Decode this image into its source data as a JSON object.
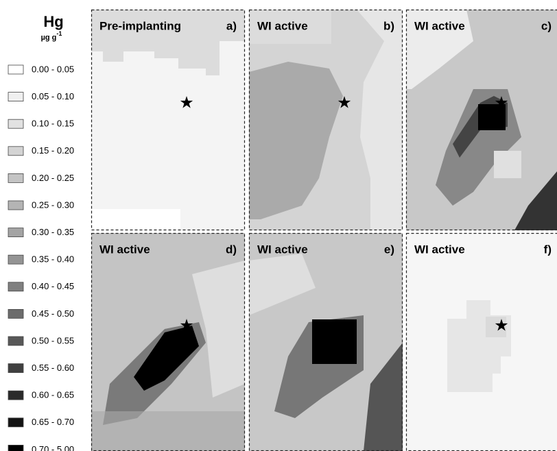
{
  "legend": {
    "title": "Hg",
    "unit": "µg g",
    "unit_exponent": "-1",
    "items": [
      {
        "label": "0.00 - 0.05",
        "color": "#ffffff"
      },
      {
        "label": "0.05 - 0.10",
        "color": "#f0f0f0"
      },
      {
        "label": "0.10 - 0.15",
        "color": "#e2e2e2"
      },
      {
        "label": "0.15 - 0.20",
        "color": "#d4d4d4"
      },
      {
        "label": "0.20 - 0.25",
        "color": "#c4c4c4"
      },
      {
        "label": "0.25 - 0.30",
        "color": "#b4b4b4"
      },
      {
        "label": "0.30 - 0.35",
        "color": "#a4a4a4"
      },
      {
        "label": "0.35 - 0.40",
        "color": "#949494"
      },
      {
        "label": "0.40 - 0.45",
        "color": "#808080"
      },
      {
        "label": "0.45 - 0.50",
        "color": "#6c6c6c"
      },
      {
        "label": "0.50 - 0.55",
        "color": "#585858"
      },
      {
        "label": "0.55 - 0.60",
        "color": "#404040"
      },
      {
        "label": "0.60 - 0.65",
        "color": "#2a2a2a"
      },
      {
        "label": "0.65 - 0.70",
        "color": "#141414"
      },
      {
        "label": "0.70 - 5.00",
        "color": "#000000"
      }
    ]
  },
  "panels": [
    {
      "title": "Pre-implanting",
      "letter": "a)"
    },
    {
      "title": "WI active",
      "letter": "b)"
    },
    {
      "title": "WI active",
      "letter": "c)"
    },
    {
      "title": "WI active",
      "letter": "d)"
    },
    {
      "title": "WI active",
      "letter": "e)"
    },
    {
      "title": "WI active",
      "letter": "f)"
    }
  ]
}
